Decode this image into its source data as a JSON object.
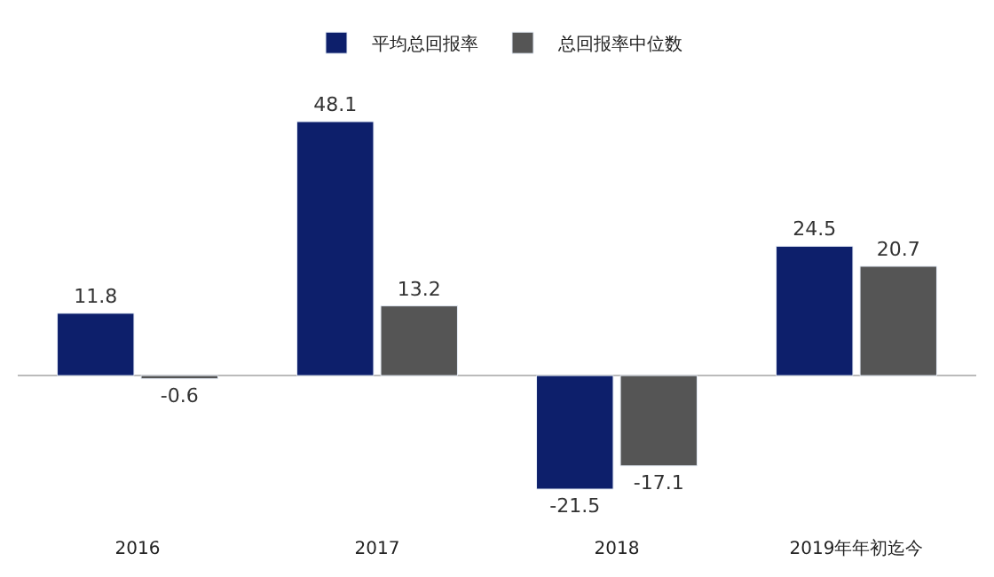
{
  "chart_data": {
    "type": "bar",
    "categories": [
      "2016",
      "2017",
      "2018",
      "2019年年初迄今"
    ],
    "series": [
      {
        "name": "平均总回报率",
        "color": "#0d1f6b",
        "values": [
          11.8,
          48.1,
          -21.5,
          24.5
        ]
      },
      {
        "name": "总回报率中位数",
        "color": "#555555",
        "values": [
          -0.6,
          13.2,
          -17.1,
          20.7
        ]
      }
    ],
    "data_labels": true,
    "legend": "top"
  }
}
